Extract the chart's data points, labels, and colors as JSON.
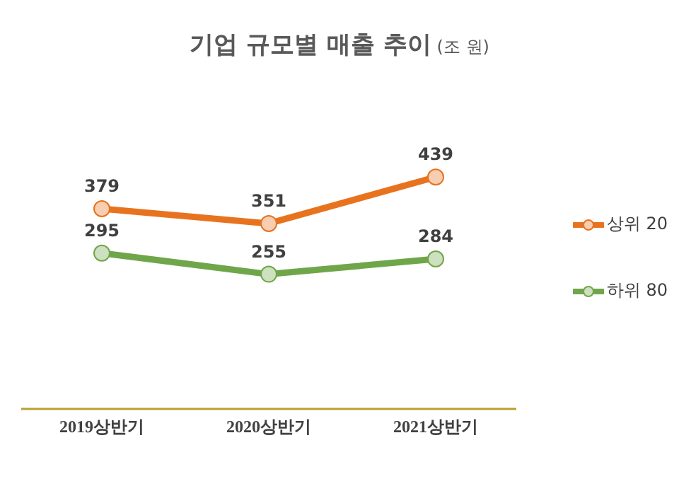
{
  "chart_data": {
    "type": "line",
    "title": "기업 규모별 매출 추이",
    "subtitle": "(조 원)",
    "categories": [
      "2019상반기",
      "2020상반기",
      "2021상반기"
    ],
    "series": [
      {
        "name": "상위 20",
        "color": "#e8731f",
        "values": [
          379,
          351,
          439
        ]
      },
      {
        "name": "하위 80",
        "color": "#70a64a",
        "values": [
          295,
          255,
          284
        ]
      }
    ],
    "data_labels": true,
    "legend": "right",
    "marker": "circle",
    "grid": false
  }
}
